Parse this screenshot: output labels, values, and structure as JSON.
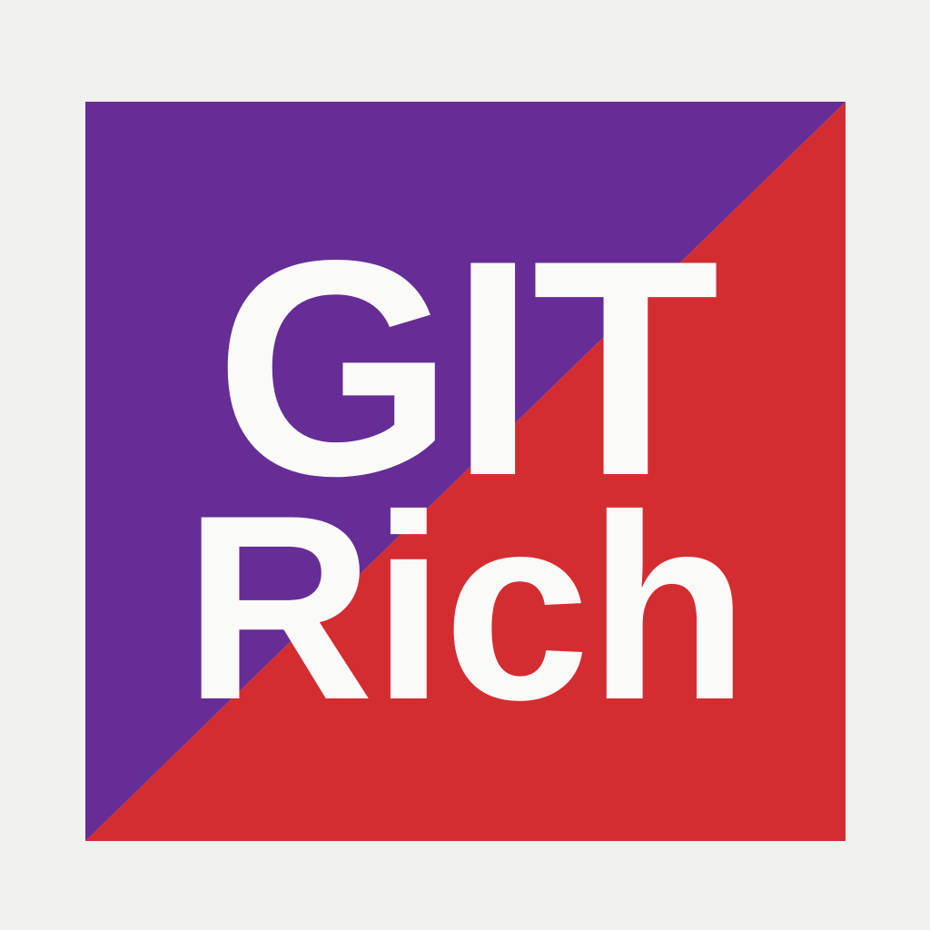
{
  "logo": {
    "line1": "GIT",
    "line2": "Rich",
    "colors": {
      "background": "#F0F0EF",
      "purple": "#652D95",
      "red": "#D42D31",
      "text": "#FAFAF8"
    }
  }
}
